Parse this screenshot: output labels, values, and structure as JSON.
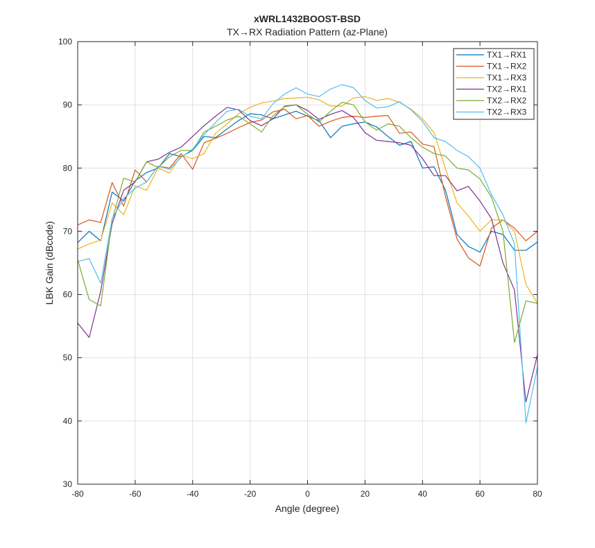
{
  "chart_data": {
    "type": "line",
    "title": "xWRL1432BOOST-BSD",
    "subtitle": "TX→RX Radiation Pattern (az-Plane)",
    "xlabel": "Angle (degree)",
    "ylabel": "LBK Gain (dBcode)",
    "xlim": [
      -80,
      80
    ],
    "ylim": [
      30,
      100
    ],
    "xticks": [
      -80,
      -60,
      -40,
      -20,
      0,
      20,
      40,
      60,
      80
    ],
    "yticks": [
      30,
      40,
      50,
      60,
      70,
      80,
      90,
      100
    ],
    "grid": true,
    "legend_position": "top-right",
    "x": [
      -80,
      -76,
      -72,
      -68,
      -64,
      -60,
      -56,
      -52,
      -48,
      -44,
      -40,
      -36,
      -32,
      -28,
      -24,
      -20,
      -16,
      -12,
      -8,
      -4,
      0,
      4,
      8,
      12,
      16,
      20,
      24,
      28,
      32,
      36,
      40,
      44,
      48,
      52,
      56,
      60,
      64,
      68,
      72,
      76,
      80
    ],
    "series": [
      {
        "name": "TX1→RX1",
        "color": "#0072BD",
        "values": [
          68.2,
          70,
          68.5,
          76.2,
          74.8,
          78,
          79.3,
          80,
          82.3,
          81.8,
          82.8,
          85,
          84.8,
          86.2,
          87.5,
          88.6,
          88.4,
          87.8,
          88.4,
          89,
          88.2,
          87.5,
          84.8,
          86.6,
          87,
          87.3,
          86.5,
          85,
          83.6,
          84.2,
          80,
          80.2,
          76.5,
          69.5,
          67.6,
          66.7,
          70,
          69.5,
          67,
          67,
          68.3
        ]
      },
      {
        "name": "TX1→RX2",
        "color": "#D95319",
        "values": [
          71,
          71.8,
          71.4,
          77.7,
          74,
          79.7,
          77.8,
          80.3,
          80,
          82.3,
          79.8,
          84,
          84.7,
          85.5,
          86.4,
          87.2,
          87.6,
          88.9,
          89.3,
          87.8,
          88.3,
          86.6,
          87.4,
          88,
          88.2,
          88,
          88.2,
          88.3,
          85.5,
          85.7,
          83.8,
          83.4,
          75.5,
          68.8,
          65.8,
          64.5,
          70.5,
          71.8,
          70.5,
          68.5,
          70
        ]
      },
      {
        "name": "TX1→RX3",
        "color": "#EDB120",
        "values": [
          67.2,
          68,
          68.6,
          74.5,
          72.6,
          77.2,
          76.5,
          80,
          79.2,
          82,
          81.5,
          82.3,
          85.5,
          87,
          88.6,
          89.6,
          90.3,
          90.6,
          91,
          91.1,
          91.2,
          90.8,
          89.8,
          89.8,
          91.1,
          91.3,
          90.7,
          91,
          90.4,
          89.3,
          87.8,
          85.6,
          79.9,
          74.5,
          72.4,
          70,
          71.8,
          71.8,
          70,
          61.6,
          58.6
        ]
      },
      {
        "name": "TX2→RX1",
        "color": "#7E2F8E",
        "values": [
          55.5,
          53.2,
          60.5,
          71.2,
          76.5,
          77.8,
          81,
          81.4,
          82.5,
          83.3,
          85,
          86.7,
          88.2,
          89.6,
          89.2,
          87.5,
          86.7,
          87.8,
          89.8,
          90,
          89.1,
          87.7,
          88.5,
          89.1,
          88,
          85.6,
          84.4,
          84.2,
          84,
          83.6,
          81.5,
          78.8,
          78.8,
          76.4,
          77.1,
          74.8,
          72,
          65,
          60.7,
          43,
          50.5
        ]
      },
      {
        "name": "TX2→RX2",
        "color": "#77AC30",
        "values": [
          65.5,
          59.2,
          58.2,
          71.8,
          78.4,
          77.8,
          81,
          80.1,
          81.8,
          82.8,
          82.8,
          85.7,
          86.6,
          87.6,
          88.2,
          87,
          85.7,
          88.3,
          89.7,
          90,
          88.5,
          87.3,
          89,
          90.4,
          90,
          87.3,
          86,
          87,
          86.6,
          84.8,
          83.3,
          82.3,
          81.9,
          80,
          79.7,
          78.3,
          75.4,
          70,
          52.4,
          59,
          58.6
        ]
      },
      {
        "name": "TX2→RX3",
        "color": "#4DBEEE",
        "values": [
          65.2,
          65.7,
          61.8,
          72,
          75.2,
          76.8,
          77.8,
          80.3,
          79.8,
          81.7,
          83,
          85.3,
          87.2,
          89,
          89.3,
          88.2,
          87.8,
          90.2,
          91.7,
          92.7,
          91.7,
          91.3,
          92.5,
          93.2,
          92.7,
          90.7,
          89.5,
          89.7,
          90.5,
          89.2,
          87.4,
          84.8,
          84.2,
          82.8,
          81.8,
          80,
          75.8,
          72.6,
          68,
          39.7,
          48.5
        ]
      }
    ]
  }
}
